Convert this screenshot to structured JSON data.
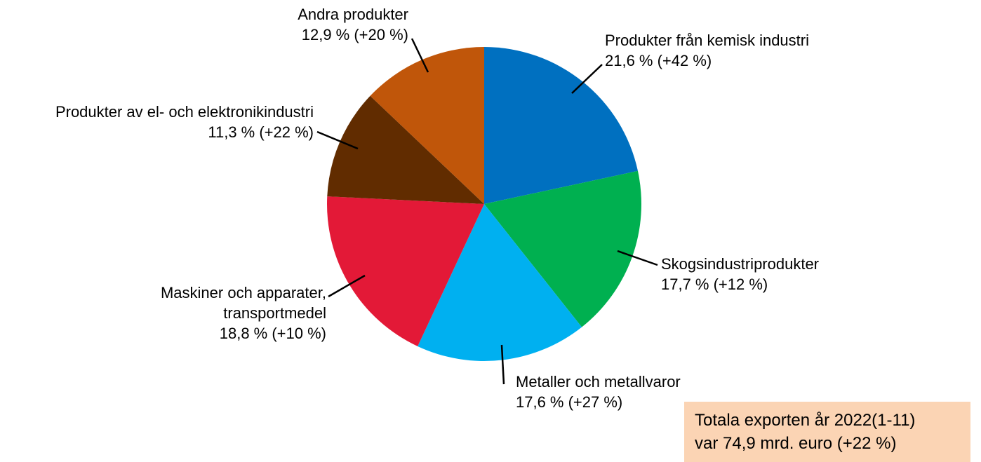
{
  "chart_data": {
    "type": "pie",
    "categories": [
      "Produkter från kemisk industri",
      "Skogsindustriprodukter",
      "Metaller och metallvaror",
      "Maskiner och apparater, transportmedel",
      "Produkter av el- och elektronikindustri",
      "Andra produkter"
    ],
    "values": [
      21.6,
      17.7,
      17.6,
      18.8,
      11.3,
      12.9
    ],
    "value_labels": [
      "21,6 % (+42 %)",
      "17,7 % (+12 %)",
      "17,6 % (+27 %)",
      "18,8 % (+10 %)",
      "11,3 % (+22 %)",
      "12,9 % (+20 %)"
    ],
    "colors": [
      "#0070c0",
      "#00b050",
      "#00b0f0",
      "#e31937",
      "#612c00",
      "#c0560a"
    ],
    "annotation": [
      "Totala exporten år 2022(1-11)",
      "var 74,9 mrd. euro (+22 %)"
    ]
  }
}
